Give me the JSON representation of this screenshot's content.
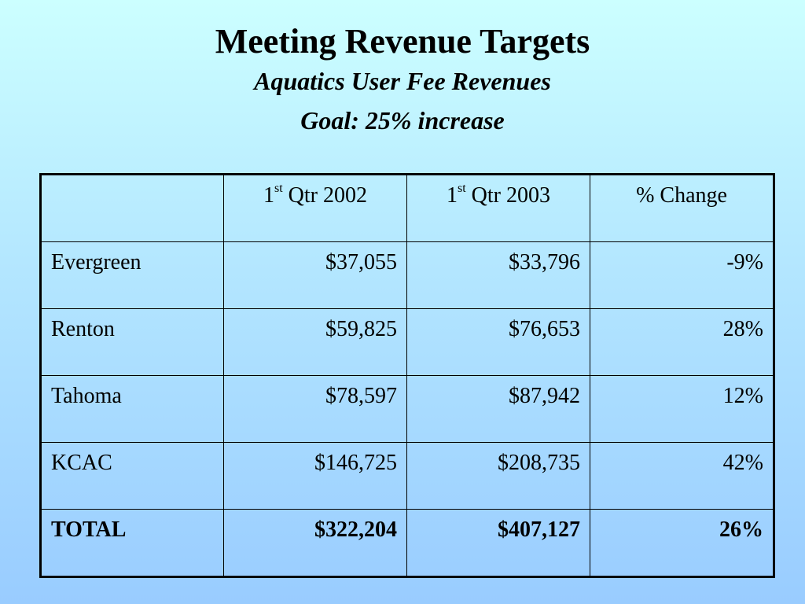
{
  "slide": {
    "title": "Meeting Revenue Targets",
    "subtitle_1": "Aquatics User Fee Revenues",
    "subtitle_2": "Goal: 25% increase"
  },
  "table": {
    "headers": [
      {
        "label": "",
        "num": "",
        "sup": "",
        "rest": ""
      },
      {
        "num": "1",
        "sup": "st",
        "rest": " Qtr 2002"
      },
      {
        "num": "1",
        "sup": "st",
        "rest": " Qtr 2003"
      },
      {
        "num": "",
        "sup": "",
        "rest": "% Change"
      }
    ],
    "rows": [
      {
        "name": "Evergreen",
        "q2002": "$37,055",
        "q2003": "$33,796",
        "change": "-9%"
      },
      {
        "name": "Renton",
        "q2002": "$59,825",
        "q2003": "$76,653",
        "change": "28%"
      },
      {
        "name": "Tahoma",
        "q2002": "$78,597",
        "q2003": "$87,942",
        "change": "12%"
      },
      {
        "name": "KCAC",
        "q2002": "$146,725",
        "q2003": "$208,735",
        "change": "42%"
      }
    ],
    "total": {
      "name": "TOTAL",
      "q2002": "$322,204",
      "q2003": "$407,127",
      "change": "26%"
    }
  },
  "colors": {
    "background_top": "#ccffff",
    "background_bottom": "#99ccff",
    "text": "#000000"
  }
}
